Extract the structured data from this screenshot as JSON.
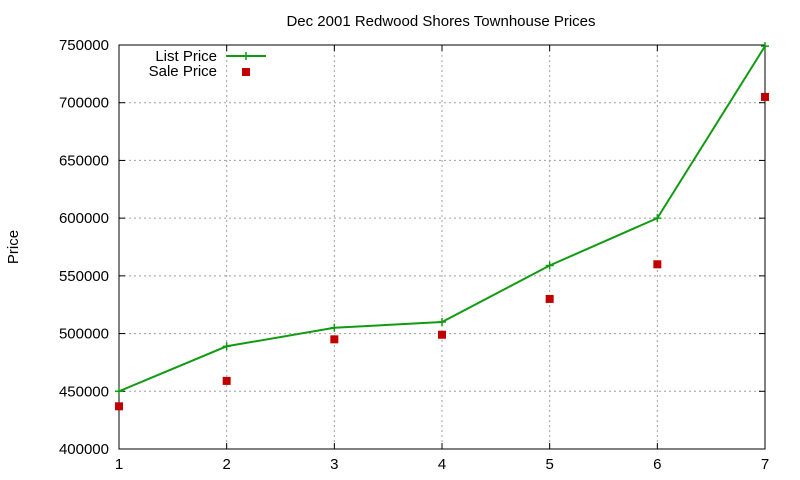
{
  "chart_data": {
    "type": "line",
    "title": "Dec 2001 Redwood Shores Townhouse Prices",
    "xlabel": "",
    "ylabel": "Price",
    "x": [
      1,
      2,
      3,
      4,
      5,
      6,
      7
    ],
    "xlim": [
      1,
      7
    ],
    "ylim": [
      400000,
      750000
    ],
    "xticks": [
      "1",
      "2",
      "3",
      "4",
      "5",
      "6",
      "7"
    ],
    "yticks": [
      "400000",
      "450000",
      "500000",
      "550000",
      "600000",
      "650000",
      "700000",
      "750000"
    ],
    "grid": true,
    "legend_position": "top-left",
    "series": [
      {
        "name": "List Price",
        "style": "line+points",
        "color": "#129B12",
        "values": [
          450000,
          489000,
          505000,
          510000,
          559000,
          600000,
          749000
        ]
      },
      {
        "name": "Sale Price",
        "style": "points",
        "color": "#C00000",
        "values": [
          437000,
          459000,
          495000,
          499000,
          530000,
          560000,
          705000
        ]
      }
    ]
  }
}
